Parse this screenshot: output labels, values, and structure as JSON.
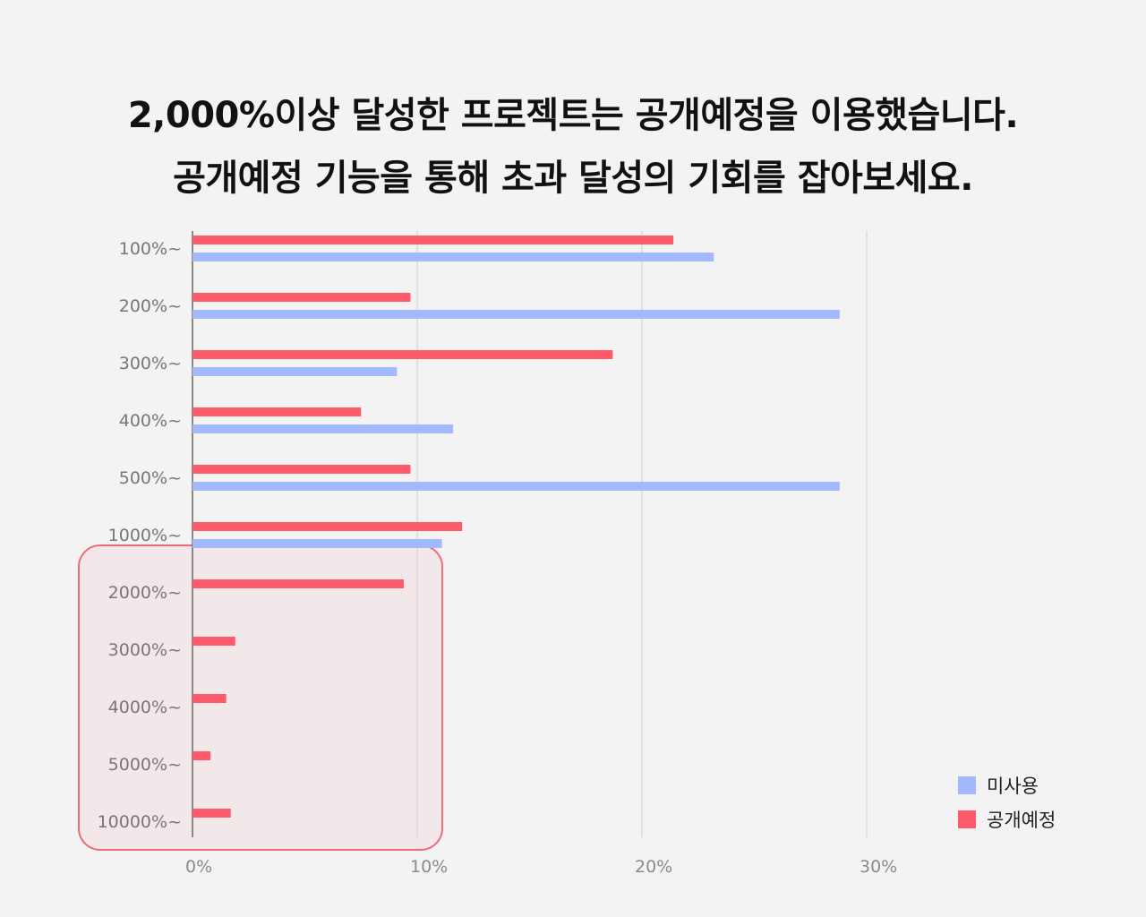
{
  "title_lines": [
    "2,000%이상 달성한 프로젝트는 공개예정을 이용했습니다.",
    "공개예정 기능을 통해 초과 달성의 기회를 잡아보세요."
  ],
  "chart_data": {
    "type": "bar",
    "orientation": "horizontal",
    "categories": [
      "100%~",
      "200%~",
      "300%~",
      "400%~",
      "500%~",
      "1000%~",
      "2000%~",
      "3000%~",
      "4000%~",
      "5000%~",
      "10000%~"
    ],
    "series": [
      {
        "name": "공개예정",
        "color": "#ff5a6a",
        "values": [
          21.4,
          9.7,
          18.7,
          7.5,
          9.7,
          12.0,
          9.4,
          1.9,
          1.5,
          0.8,
          1.7
        ]
      },
      {
        "name": "미사용",
        "color": "#a3b9ff",
        "values": [
          23.2,
          28.8,
          9.1,
          11.6,
          28.8,
          11.1,
          0,
          0,
          0,
          0,
          0
        ]
      }
    ],
    "x_ticks": [
      "0%",
      "10%",
      "20%",
      "30%"
    ],
    "xlim": [
      0,
      30
    ],
    "grid": true,
    "legend_position": "bottom-right",
    "legend": [
      {
        "name": "미사용",
        "color": "#a3b9ff"
      },
      {
        "name": "공개예정",
        "color": "#ff5a6a"
      }
    ],
    "highlight": {
      "categories": [
        "2000%~",
        "3000%~",
        "4000%~",
        "5000%~",
        "10000%~"
      ],
      "color": "#ef6b78"
    }
  }
}
